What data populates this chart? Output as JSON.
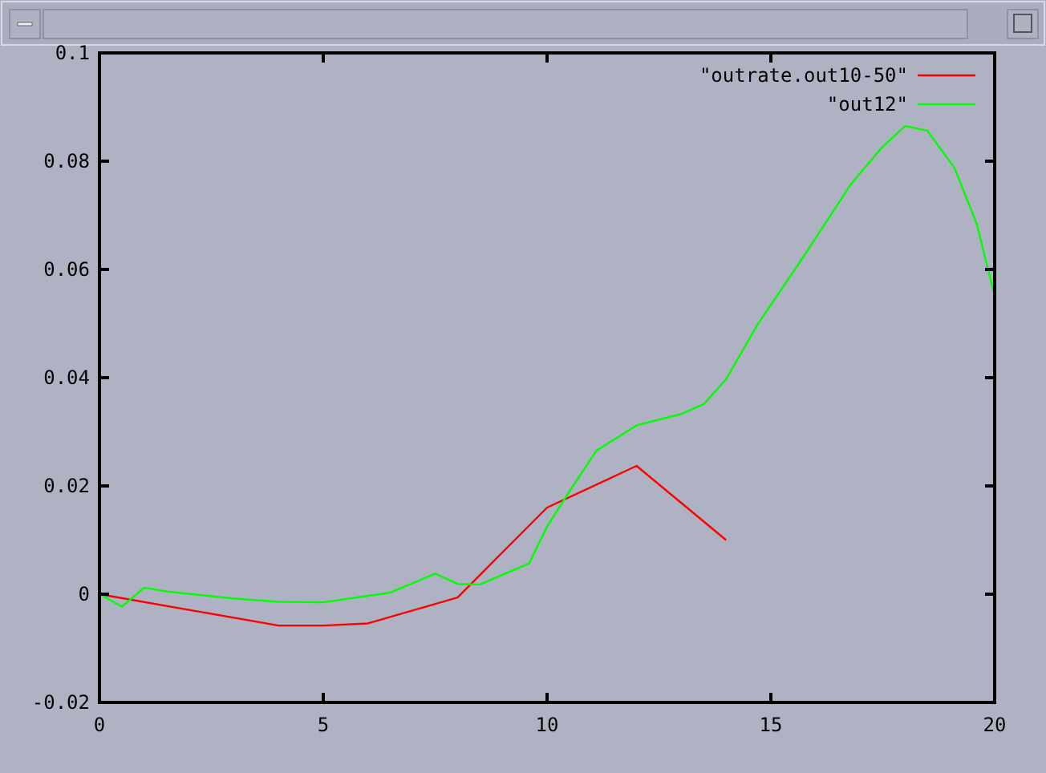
{
  "chart_data": {
    "type": "line",
    "xlim": [
      0,
      20
    ],
    "ylim": [
      -0.02,
      0.1
    ],
    "xticks": [
      0,
      5,
      10,
      15,
      20
    ],
    "yticks": [
      -0.02,
      0,
      0.02,
      0.04,
      0.06,
      0.08,
      0.1
    ],
    "legend": "top right",
    "series": [
      {
        "name": "\"outrate.out10-50\"",
        "color": "#ff0000",
        "x": [
          0,
          4,
          5,
          6,
          8,
          10,
          12,
          14
        ],
        "values": [
          0,
          -0.0058,
          -0.0058,
          -0.0054,
          -0.0006,
          0.016,
          0.0237,
          0.01
        ]
      },
      {
        "name": "\"out12\"",
        "color": "#00ff00",
        "x": [
          0,
          0.5,
          1,
          1.5,
          3,
          4,
          5,
          6.5,
          7.5,
          8,
          8.5,
          9.6,
          10,
          10.5,
          11.1,
          12,
          13,
          13.5,
          14,
          14.7,
          15.7,
          16.8,
          17.5,
          18,
          18.5,
          19.1,
          19.6,
          20
        ],
        "values": [
          0,
          -0.0023,
          0.0012,
          0.0005,
          -0.0008,
          -0.0014,
          -0.0015,
          0.0003,
          0.0038,
          0.0019,
          0.0018,
          0.0057,
          0.0125,
          0.019,
          0.0265,
          0.0312,
          0.0333,
          0.0351,
          0.0397,
          0.0498,
          0.062,
          0.0759,
          0.0827,
          0.0865,
          0.0856,
          0.0788,
          0.0684,
          0.0551
        ]
      }
    ]
  }
}
